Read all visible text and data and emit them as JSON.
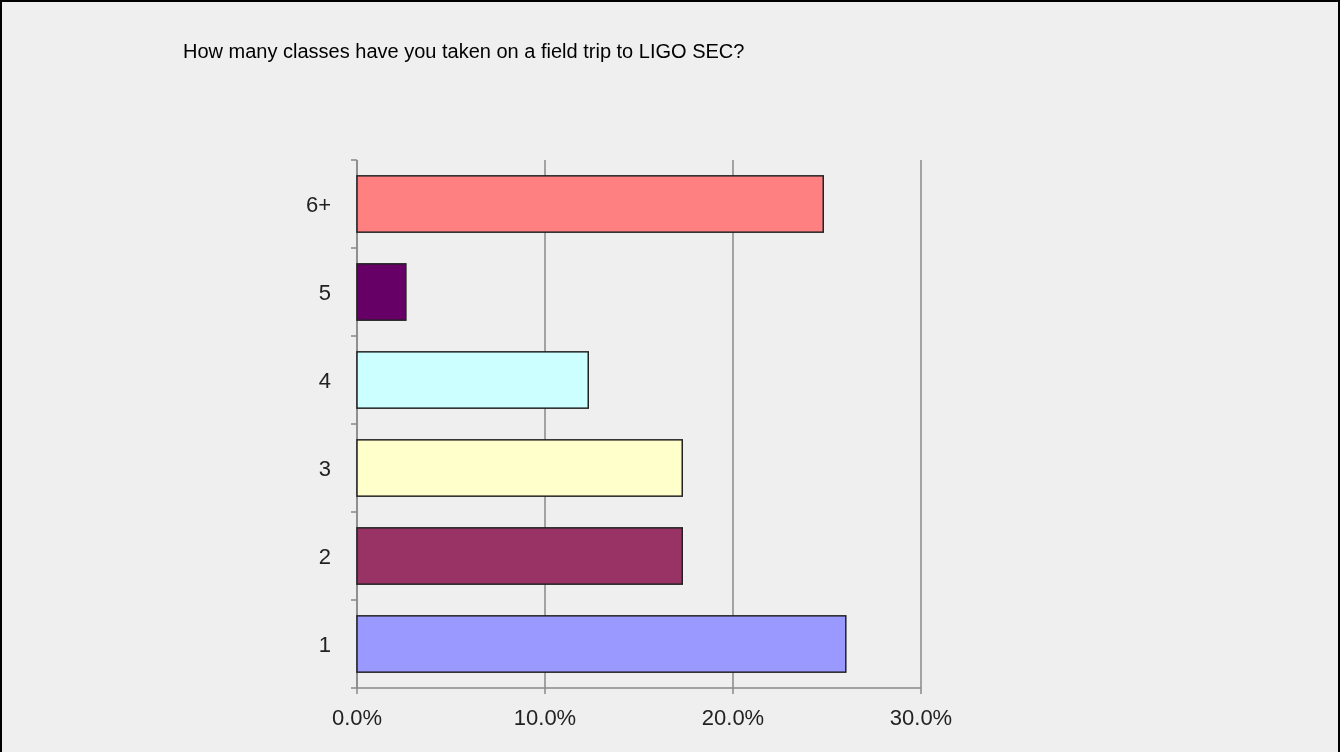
{
  "chart_data": {
    "type": "bar",
    "orientation": "horizontal",
    "title": "How many classes have you taken on a field trip to LIGO SEC?",
    "categories": [
      "6+",
      "5",
      "4",
      "3",
      "2",
      "1"
    ],
    "values": [
      24.8,
      2.6,
      12.3,
      17.3,
      17.3,
      26.0
    ],
    "colors": [
      "#ff8080",
      "#660066",
      "#ccffff",
      "#ffffcc",
      "#993366",
      "#9999ff"
    ],
    "xlim": [
      0,
      30
    ],
    "xticks": [
      {
        "value": 0,
        "label": "0.0%"
      },
      {
        "value": 10,
        "label": "10.0%"
      },
      {
        "value": 20,
        "label": "20.0%"
      },
      {
        "value": 30,
        "label": "30.0%"
      }
    ],
    "grid": "x"
  }
}
